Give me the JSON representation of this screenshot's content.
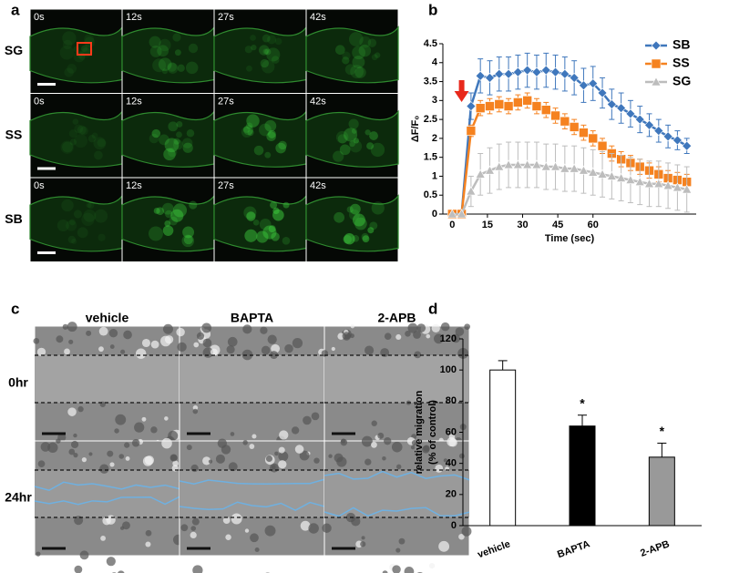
{
  "figure": {
    "panel_labels": [
      "a",
      "b",
      "c",
      "d"
    ],
    "panel_a": {
      "rows": [
        {
          "label": "SG",
          "times": [
            "0s",
            "12s",
            "27s",
            "42s"
          ]
        },
        {
          "label": "SS",
          "times": [
            "0s",
            "12s",
            "27s",
            "42s"
          ]
        },
        {
          "label": "SB",
          "times": [
            "0s",
            "12s",
            "27s",
            "42s"
          ]
        }
      ]
    },
    "panel_c": {
      "columns": [
        "vehicle",
        "BAPTA",
        "2-APB"
      ],
      "rows": [
        "0hr",
        "24hr"
      ]
    }
  },
  "chart_data": [
    {
      "type": "line",
      "x_label": "Time (sec)",
      "y_label": "ΔF/F₀",
      "x": [
        0,
        4,
        8,
        12,
        16,
        20,
        24,
        28,
        32,
        36,
        40,
        44,
        48,
        52,
        56,
        60,
        64,
        68,
        72,
        76,
        80,
        84,
        88,
        92,
        96,
        100
      ],
      "xlim": [
        -4,
        104
      ],
      "xticks": [
        0,
        15,
        30,
        45,
        60
      ],
      "ylim": [
        0,
        4.5
      ],
      "yticks": [
        0,
        0.5,
        1,
        1.5,
        2,
        2.5,
        3,
        3.5,
        4,
        4.5
      ],
      "legend": "top-right",
      "series": [
        {
          "name": "SB",
          "color": "#3f77bc",
          "marker": "diamond",
          "values": [
            0,
            0,
            2.85,
            3.65,
            3.6,
            3.7,
            3.7,
            3.75,
            3.8,
            3.75,
            3.8,
            3.75,
            3.7,
            3.6,
            3.4,
            3.45,
            3.2,
            2.9,
            2.8,
            2.65,
            2.5,
            2.35,
            2.2,
            2.05,
            1.95,
            1.8
          ],
          "errors": [
            0,
            0,
            0.35,
            0.45,
            0.45,
            0.45,
            0.45,
            0.45,
            0.45,
            0.45,
            0.45,
            0.45,
            0.45,
            0.45,
            0.45,
            0.45,
            0.4,
            0.4,
            0.4,
            0.35,
            0.35,
            0.3,
            0.3,
            0.3,
            0.25,
            0.2
          ]
        },
        {
          "name": "SS",
          "color": "#f58220",
          "marker": "square",
          "values": [
            0,
            0,
            2.2,
            2.8,
            2.85,
            2.9,
            2.85,
            2.95,
            3.0,
            2.85,
            2.75,
            2.6,
            2.45,
            2.3,
            2.15,
            2.0,
            1.8,
            1.6,
            1.45,
            1.35,
            1.25,
            1.15,
            1.05,
            0.95,
            0.9,
            0.85
          ],
          "errors": [
            0,
            0,
            0.15,
            0.2,
            0.2,
            0.2,
            0.2,
            0.2,
            0.2,
            0.2,
            0.2,
            0.2,
            0.2,
            0.2,
            0.2,
            0.2,
            0.2,
            0.2,
            0.2,
            0.2,
            0.2,
            0.2,
            0.2,
            0.2,
            0.2,
            0.2
          ]
        },
        {
          "name": "SG",
          "color": "#bdbdbd",
          "marker": "triangle",
          "values": [
            0,
            0,
            0.6,
            1.05,
            1.15,
            1.25,
            1.3,
            1.3,
            1.3,
            1.3,
            1.25,
            1.25,
            1.2,
            1.2,
            1.15,
            1.1,
            1.05,
            1.0,
            0.95,
            0.9,
            0.85,
            0.8,
            0.8,
            0.75,
            0.7,
            0.65
          ],
          "errors": [
            0,
            0,
            0.4,
            0.55,
            0.6,
            0.6,
            0.6,
            0.6,
            0.6,
            0.6,
            0.6,
            0.6,
            0.6,
            0.6,
            0.6,
            0.6,
            0.6,
            0.6,
            0.6,
            0.6,
            0.6,
            0.6,
            0.6,
            0.6,
            0.6,
            0.6
          ]
        }
      ]
    },
    {
      "type": "bar",
      "y_label": [
        "relative migration",
        "(% of control)"
      ],
      "categories": [
        "vehicle",
        "BAPTA",
        "2-APB"
      ],
      "values": [
        100,
        64,
        44
      ],
      "errors": [
        6,
        7,
        9
      ],
      "colors": [
        "#ffffff",
        "#000000",
        "#999999"
      ],
      "annotations": [
        null,
        "*",
        "*"
      ],
      "ylim": [
        0,
        120
      ],
      "yticks": [
        0,
        20,
        40,
        60,
        80,
        100,
        120
      ]
    }
  ]
}
